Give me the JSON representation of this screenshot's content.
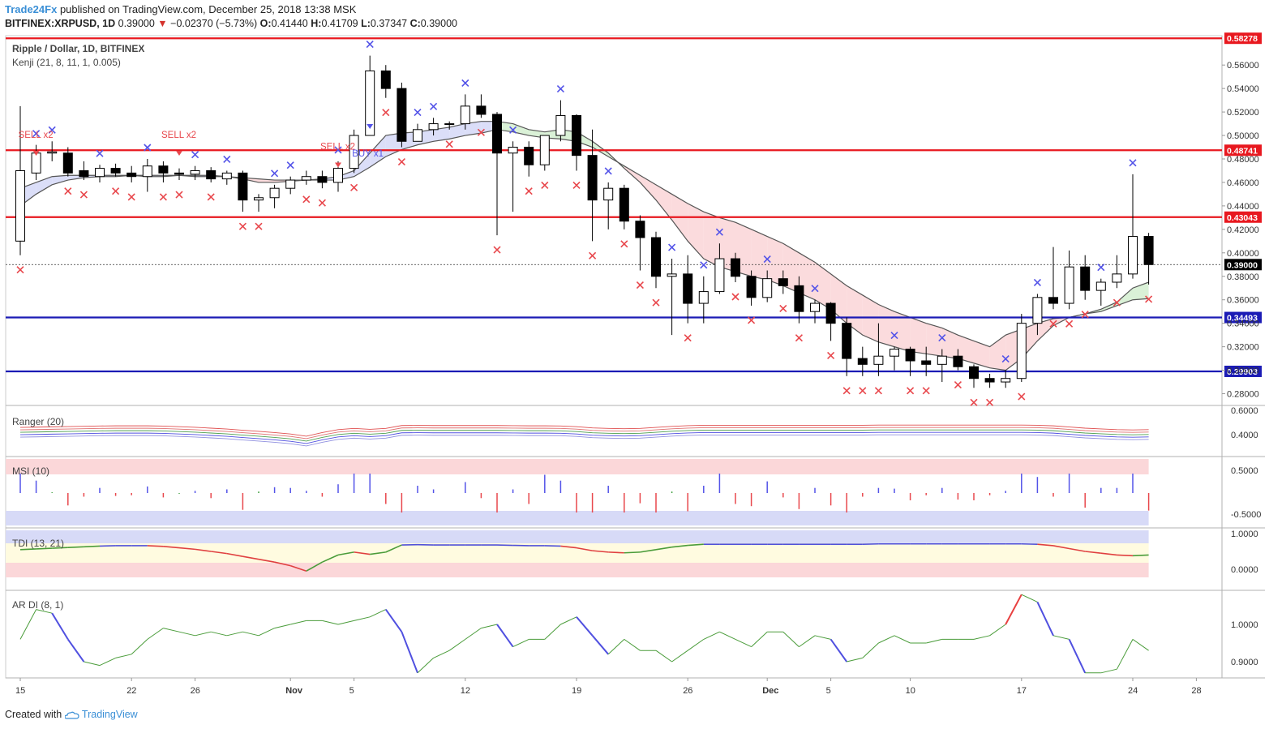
{
  "header": {
    "publisher": "Trade24Fx",
    "published_text": "published on TradingView.com, December 25, 2018 13:38 MSK",
    "symbol": "BITFINEX:XRPUSD, 1D",
    "last": "0.39000",
    "change": "−0.02370 (−5.73%)",
    "o_label": "O:",
    "o": "0.41440",
    "h_label": "H:",
    "h": "0.41709",
    "l_label": "L:",
    "l": "0.37347",
    "c_label": "C:",
    "c": "0.39000"
  },
  "legend": {
    "title": "Ripple / Dollar, 1D, BITFINEX",
    "kenji": "Kenji (21, 8, 11, 1, 0.005)"
  },
  "panes": {
    "ranger": "Ranger (20)",
    "msi": "MSI (10)",
    "tdi": "TDI (13, 21)",
    "ardi": "AR DI (8, 1)"
  },
  "footer": {
    "created_with": "Created with",
    "brand": "TradingView"
  },
  "colors": {
    "bull": "#ffffff",
    "bear": "#000000",
    "red_line": "#e8181f",
    "blue_line": "#1b1bb5",
    "sell": "#e8474c",
    "buy": "#5353e8"
  },
  "chart_data": {
    "type": "candlestick",
    "title": "Ripple / Dollar, 1D, BITFINEX",
    "ylim": [
      0.27,
      0.585
    ],
    "price_ticks": [
      "0.56000",
      "0.54000",
      "0.52000",
      "0.50000",
      "0.48000",
      "0.46000",
      "0.44000",
      "0.42000",
      "0.40000",
      "0.38000",
      "0.36000",
      "0.34000",
      "0.32000",
      "0.30000",
      "0.28000"
    ],
    "date_ticks": [
      {
        "label": "15",
        "i": 0
      },
      {
        "label": "22",
        "i": 7
      },
      {
        "label": "26",
        "i": 11
      },
      {
        "label": "Nov",
        "i": 17
      },
      {
        "label": "5",
        "i": 21
      },
      {
        "label": "12",
        "i": 28
      },
      {
        "label": "19",
        "i": 35
      },
      {
        "label": "26",
        "i": 42
      },
      {
        "label": "Dec",
        "i": 47
      },
      {
        "label": "5",
        "i": 51
      },
      {
        "label": "10",
        "i": 56
      },
      {
        "label": "17",
        "i": 63
      },
      {
        "label": "24",
        "i": 70
      },
      {
        "label": "28",
        "i": 74
      }
    ],
    "levels": [
      {
        "value": 0.58278,
        "label": "0.58278",
        "color": "red"
      },
      {
        "value": 0.48741,
        "label": "0.48741",
        "color": "red"
      },
      {
        "value": 0.43043,
        "label": "0.43043",
        "color": "red"
      },
      {
        "value": 0.34493,
        "label": "0.34493",
        "color": "blue"
      },
      {
        "value": 0.29903,
        "label": "0.29903",
        "color": "blue"
      }
    ],
    "last_price": {
      "value": 0.39,
      "label": "0.39000"
    },
    "ohlc": [
      [
        0.41,
        0.525,
        0.398,
        0.47
      ],
      [
        0.468,
        0.492,
        0.462,
        0.485
      ],
      [
        0.485,
        0.495,
        0.478,
        0.486
      ],
      [
        0.485,
        0.49,
        0.465,
        0.468
      ],
      [
        0.47,
        0.478,
        0.462,
        0.465
      ],
      [
        0.465,
        0.475,
        0.46,
        0.472
      ],
      [
        0.472,
        0.476,
        0.465,
        0.468
      ],
      [
        0.468,
        0.474,
        0.46,
        0.465
      ],
      [
        0.465,
        0.48,
        0.452,
        0.474
      ],
      [
        0.474,
        0.478,
        0.46,
        0.468
      ],
      [
        0.468,
        0.472,
        0.462,
        0.467
      ],
      [
        0.467,
        0.474,
        0.462,
        0.47
      ],
      [
        0.47,
        0.473,
        0.46,
        0.463
      ],
      [
        0.463,
        0.47,
        0.458,
        0.468
      ],
      [
        0.468,
        0.47,
        0.435,
        0.445
      ],
      [
        0.445,
        0.45,
        0.435,
        0.447
      ],
      [
        0.447,
        0.458,
        0.438,
        0.455
      ],
      [
        0.455,
        0.465,
        0.45,
        0.462
      ],
      [
        0.462,
        0.47,
        0.458,
        0.465
      ],
      [
        0.465,
        0.47,
        0.455,
        0.46
      ],
      [
        0.46,
        0.478,
        0.452,
        0.472
      ],
      [
        0.472,
        0.505,
        0.468,
        0.5
      ],
      [
        0.5,
        0.568,
        0.5,
        0.555
      ],
      [
        0.555,
        0.56,
        0.532,
        0.54
      ],
      [
        0.54,
        0.545,
        0.49,
        0.495
      ],
      [
        0.495,
        0.51,
        0.495,
        0.505
      ],
      [
        0.505,
        0.515,
        0.5,
        0.51
      ],
      [
        0.51,
        0.512,
        0.505,
        0.51
      ],
      [
        0.51,
        0.535,
        0.505,
        0.525
      ],
      [
        0.525,
        0.535,
        0.515,
        0.518
      ],
      [
        0.518,
        0.52,
        0.415,
        0.485
      ],
      [
        0.485,
        0.495,
        0.435,
        0.49
      ],
      [
        0.49,
        0.495,
        0.465,
        0.475
      ],
      [
        0.475,
        0.5,
        0.47,
        0.5
      ],
      [
        0.5,
        0.53,
        0.495,
        0.517
      ],
      [
        0.517,
        0.518,
        0.47,
        0.483
      ],
      [
        0.483,
        0.505,
        0.41,
        0.445
      ],
      [
        0.445,
        0.46,
        0.42,
        0.455
      ],
      [
        0.455,
        0.458,
        0.42,
        0.427
      ],
      [
        0.427,
        0.432,
        0.385,
        0.413
      ],
      [
        0.413,
        0.418,
        0.37,
        0.38
      ],
      [
        0.38,
        0.395,
        0.33,
        0.382
      ],
      [
        0.382,
        0.398,
        0.34,
        0.357
      ],
      [
        0.357,
        0.38,
        0.34,
        0.367
      ],
      [
        0.367,
        0.408,
        0.365,
        0.395
      ],
      [
        0.395,
        0.4,
        0.375,
        0.38
      ],
      [
        0.38,
        0.385,
        0.355,
        0.362
      ],
      [
        0.362,
        0.385,
        0.358,
        0.378
      ],
      [
        0.378,
        0.385,
        0.365,
        0.372
      ],
      [
        0.372,
        0.38,
        0.34,
        0.35
      ],
      [
        0.35,
        0.36,
        0.34,
        0.357
      ],
      [
        0.357,
        0.358,
        0.325,
        0.34
      ],
      [
        0.34,
        0.345,
        0.295,
        0.31
      ],
      [
        0.31,
        0.32,
        0.295,
        0.305
      ],
      [
        0.305,
        0.34,
        0.295,
        0.312
      ],
      [
        0.312,
        0.32,
        0.3,
        0.318
      ],
      [
        0.318,
        0.32,
        0.295,
        0.308
      ],
      [
        0.308,
        0.32,
        0.295,
        0.305
      ],
      [
        0.305,
        0.318,
        0.29,
        0.312
      ],
      [
        0.312,
        0.318,
        0.3,
        0.303
      ],
      [
        0.303,
        0.305,
        0.285,
        0.293
      ],
      [
        0.293,
        0.297,
        0.285,
        0.29
      ],
      [
        0.29,
        0.3,
        0.285,
        0.293
      ],
      [
        0.293,
        0.348,
        0.29,
        0.34
      ],
      [
        0.34,
        0.365,
        0.33,
        0.362
      ],
      [
        0.362,
        0.405,
        0.352,
        0.357
      ],
      [
        0.357,
        0.402,
        0.352,
        0.388
      ],
      [
        0.388,
        0.398,
        0.36,
        0.368
      ],
      [
        0.368,
        0.378,
        0.355,
        0.375
      ],
      [
        0.375,
        0.398,
        0.37,
        0.382
      ],
      [
        0.382,
        0.467,
        0.378,
        0.414
      ],
      [
        0.414,
        0.417,
        0.373,
        0.39
      ]
    ],
    "cloud_fast": [
      0.455,
      0.46,
      0.465,
      0.466,
      0.466,
      0.466,
      0.466,
      0.466,
      0.466,
      0.466,
      0.466,
      0.466,
      0.466,
      0.465,
      0.463,
      0.46,
      0.46,
      0.461,
      0.462,
      0.463,
      0.465,
      0.47,
      0.485,
      0.5,
      0.502,
      0.503,
      0.505,
      0.507,
      0.51,
      0.512,
      0.512,
      0.51,
      0.505,
      0.503,
      0.505,
      0.503,
      0.495,
      0.485,
      0.472,
      0.46,
      0.445,
      0.428,
      0.41,
      0.395,
      0.388,
      0.384,
      0.38,
      0.377,
      0.372,
      0.366,
      0.36,
      0.352,
      0.34,
      0.33,
      0.324,
      0.32,
      0.316,
      0.314,
      0.312,
      0.31,
      0.306,
      0.302,
      0.3,
      0.31,
      0.325,
      0.338,
      0.345,
      0.348,
      0.352,
      0.358,
      0.37,
      0.375
    ],
    "cloud_slow": [
      0.44,
      0.45,
      0.458,
      0.462,
      0.464,
      0.465,
      0.465,
      0.466,
      0.465,
      0.465,
      0.466,
      0.465,
      0.465,
      0.465,
      0.464,
      0.463,
      0.462,
      0.462,
      0.462,
      0.462,
      0.462,
      0.465,
      0.473,
      0.482,
      0.488,
      0.492,
      0.495,
      0.497,
      0.5,
      0.502,
      0.505,
      0.503,
      0.5,
      0.498,
      0.497,
      0.495,
      0.49,
      0.482,
      0.474,
      0.466,
      0.458,
      0.45,
      0.442,
      0.435,
      0.43,
      0.426,
      0.42,
      0.414,
      0.408,
      0.4,
      0.392,
      0.382,
      0.372,
      0.364,
      0.356,
      0.35,
      0.345,
      0.34,
      0.336,
      0.33,
      0.325,
      0.32,
      0.33,
      0.335,
      0.34,
      0.344,
      0.345,
      0.348,
      0.35,
      0.355,
      0.36,
      0.361
    ],
    "signals": [
      {
        "i": 1,
        "type": "sell",
        "text": "SELL x2"
      },
      {
        "i": 10,
        "type": "sell",
        "text": "SELL x2"
      },
      {
        "i": 20,
        "type": "sell",
        "text": "SELL x2"
      },
      {
        "i": 22,
        "type": "buy",
        "text": "BUY x1"
      }
    ],
    "tdi_values": [
      0.55,
      0.57,
      0.59,
      0.61,
      0.63,
      0.65,
      0.66,
      0.66,
      0.66,
      0.64,
      0.6,
      0.56,
      0.5,
      0.44,
      0.36,
      0.28,
      0.2,
      0.1,
      -0.05,
      0.2,
      0.4,
      0.48,
      0.42,
      0.48,
      0.68,
      0.69,
      0.68,
      0.68,
      0.68,
      0.68,
      0.68,
      0.67,
      0.66,
      0.66,
      0.65,
      0.6,
      0.52,
      0.48,
      0.46,
      0.48,
      0.55,
      0.62,
      0.67,
      0.7,
      0.7,
      0.7,
      0.7,
      0.7,
      0.7,
      0.7,
      0.7,
      0.7,
      0.7,
      0.7,
      0.71,
      0.71,
      0.71,
      0.71,
      0.71,
      0.71,
      0.71,
      0.71,
      0.71,
      0.71,
      0.7,
      0.66,
      0.58,
      0.5,
      0.45,
      0.4,
      0.38,
      0.4
    ],
    "ardi_values": [
      0.96,
      1.04,
      1.03,
      0.96,
      0.9,
      0.89,
      0.91,
      0.92,
      0.96,
      0.99,
      0.98,
      0.97,
      0.98,
      0.97,
      0.98,
      0.97,
      0.99,
      1.0,
      1.01,
      1.01,
      1.0,
      1.01,
      1.02,
      1.04,
      0.98,
      0.87,
      0.91,
      0.93,
      0.96,
      0.99,
      1.0,
      0.94,
      0.96,
      0.96,
      1.0,
      1.02,
      0.97,
      0.92,
      0.96,
      0.93,
      0.93,
      0.9,
      0.93,
      0.96,
      0.98,
      0.96,
      0.94,
      0.98,
      0.98,
      0.94,
      0.97,
      0.96,
      0.9,
      0.91,
      0.95,
      0.97,
      0.95,
      0.95,
      0.96,
      0.96,
      0.96,
      0.97,
      1.0,
      1.08,
      1.06,
      0.97,
      0.96,
      0.87,
      0.87,
      0.88,
      0.96,
      0.93
    ],
    "ranger_ticks": [
      "0.6000",
      "0.4000"
    ],
    "msi_ticks": [
      "0.5000",
      "-0.5000"
    ],
    "tdi_ticks": [
      "1.0000",
      "0.0000"
    ],
    "ardi_ticks": [
      "1.0000",
      "0.9000"
    ]
  }
}
